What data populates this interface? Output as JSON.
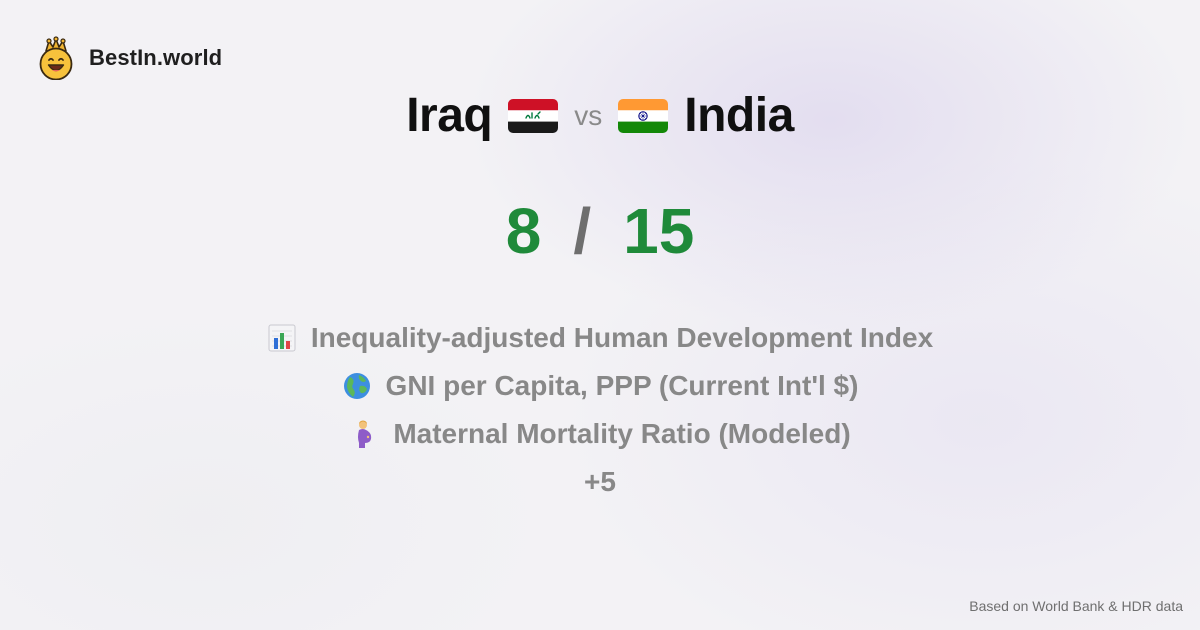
{
  "brand": {
    "name": "BestIn.world",
    "logo_icon": "crowned-smiley-icon"
  },
  "comparison": {
    "country_a": {
      "name": "Iraq",
      "flag_icon": "iraq-flag-icon"
    },
    "vs_label": "vs",
    "country_b": {
      "name": "India",
      "flag_icon": "india-flag-icon"
    }
  },
  "score": {
    "a": "8",
    "separator": "/",
    "b": "15",
    "color": "#1f8a3a"
  },
  "metrics": [
    {
      "icon": "bar-chart-icon",
      "label": "Inequality-adjusted Human Development Index"
    },
    {
      "icon": "globe-icon",
      "label": "GNI per Capita, PPP (Current Int'l $)"
    },
    {
      "icon": "pregnant-woman-icon",
      "label": "Maternal Mortality Ratio (Modeled)"
    }
  ],
  "more_count": "+5",
  "footer": "Based on World Bank & HDR data"
}
